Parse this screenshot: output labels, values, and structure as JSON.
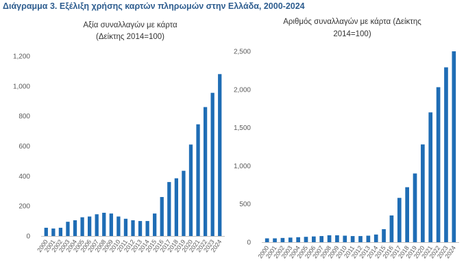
{
  "figure": {
    "title": "Διάγραμμα 3. Εξέλιξη χρήσης καρτών πληρωμών στην Ελλάδα, 2000-2024"
  },
  "colors": {
    "bar": "#1f6db5",
    "axis": "#bfbfbf",
    "title": "#2e5d8f"
  },
  "chart_data": [
    {
      "type": "bar",
      "title_lines": [
        "Αξία συναλλαγών με κάρτα",
        "(Δείκτης 2014=100)"
      ],
      "categories": [
        "2000",
        "2001",
        "2002",
        "2003",
        "2004",
        "2005",
        "2006",
        "2007",
        "2008",
        "2009",
        "2010",
        "2011",
        "2012",
        "2013",
        "2014",
        "2015",
        "2016",
        "2017",
        "2018",
        "2019",
        "2020",
        "2021",
        "2022",
        "2023",
        "2024"
      ],
      "values": [
        55,
        50,
        55,
        95,
        105,
        125,
        130,
        145,
        155,
        150,
        130,
        115,
        105,
        100,
        100,
        150,
        260,
        360,
        385,
        435,
        610,
        745,
        860,
        955,
        1080
      ],
      "yticks": [
        0,
        200,
        400,
        600,
        800,
        1000,
        1200
      ],
      "ytick_labels": [
        "0",
        "200",
        "400",
        "600",
        "800",
        "1,000",
        "1,200"
      ],
      "ylim": [
        0,
        1200
      ],
      "xlabel": "",
      "ylabel": "",
      "grid": false
    },
    {
      "type": "bar",
      "title_lines": [
        "Αριθμός συναλλαγών με κάρτα (Δείκτης",
        "2014=100)"
      ],
      "categories": [
        "2000",
        "2001",
        "2002",
        "2003",
        "2004",
        "2005",
        "2006",
        "2007",
        "2008",
        "2009",
        "2010",
        "2011",
        "2012",
        "2013",
        "2014",
        "2015",
        "2016",
        "2017",
        "2018",
        "2019",
        "2020",
        "2021",
        "2022",
        "2023",
        "2024"
      ],
      "values": [
        50,
        50,
        55,
        60,
        65,
        70,
        75,
        80,
        90,
        90,
        85,
        80,
        80,
        85,
        100,
        170,
        350,
        580,
        720,
        900,
        1280,
        1700,
        2030,
        2290,
        2500
      ],
      "yticks": [
        0,
        500,
        1000,
        1500,
        2000,
        2500
      ],
      "ytick_labels": [
        "0",
        "500",
        "1,000",
        "1,500",
        "2,000",
        "2,500"
      ],
      "ylim": [
        0,
        2500
      ],
      "xlabel": "",
      "ylabel": "",
      "grid": false
    }
  ]
}
